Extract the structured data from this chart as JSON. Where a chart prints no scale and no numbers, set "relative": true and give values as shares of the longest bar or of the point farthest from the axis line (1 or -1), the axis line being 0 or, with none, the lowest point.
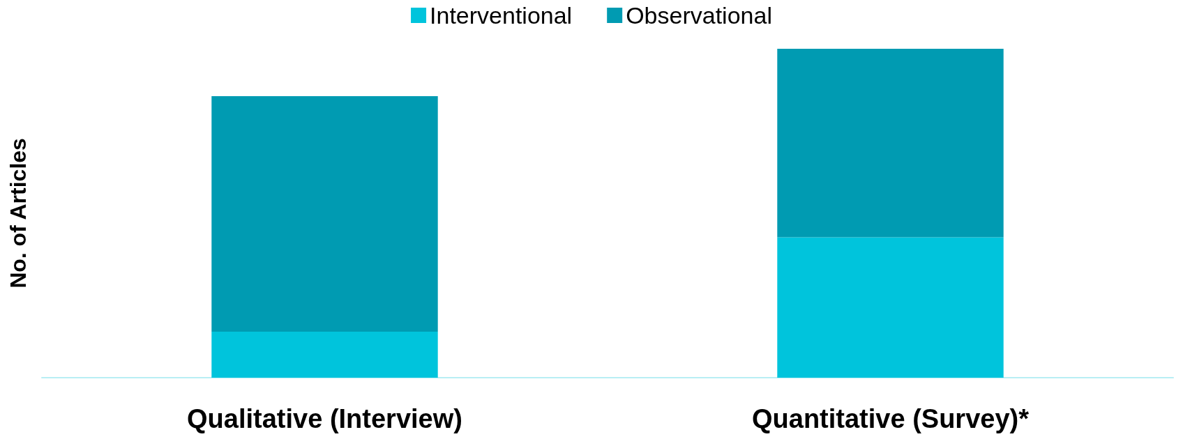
{
  "chart_data": {
    "type": "bar",
    "ylabel": "No. of Articles",
    "categories": [
      "Qualitative (Interview)",
      "Quantitative (Survey)*"
    ],
    "series": [
      {
        "name": "Interventional",
        "color": "#00c4dc",
        "values": [
          0.14,
          0.427
        ]
      },
      {
        "name": "Observational",
        "color": "#009bb2",
        "values": [
          0.716,
          0.573
        ]
      }
    ],
    "stacked": true,
    "relative": true,
    "legend": "top",
    "grid": false
  }
}
